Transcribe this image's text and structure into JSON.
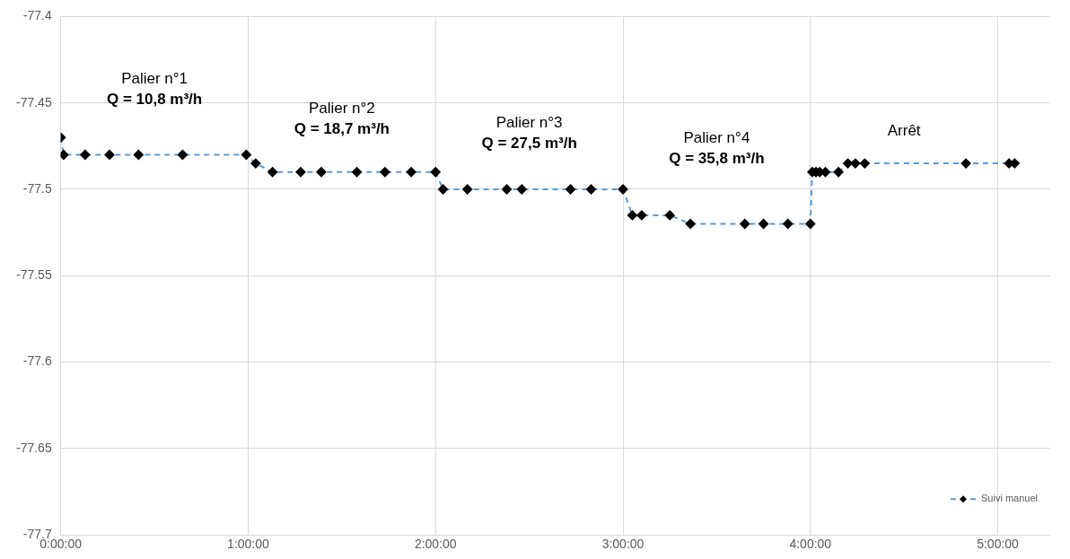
{
  "chart_data": {
    "type": "line",
    "x": [
      0,
      0.015,
      0.13,
      0.26,
      0.415,
      0.65,
      0.99,
      1.04,
      1.13,
      1.28,
      1.39,
      1.58,
      1.73,
      1.87,
      2.0,
      2.04,
      2.17,
      2.38,
      2.46,
      2.72,
      2.83,
      3.0,
      3.05,
      3.1,
      3.25,
      3.36,
      3.65,
      3.75,
      3.88,
      4.0,
      4.01,
      4.03,
      4.05,
      4.08,
      4.15,
      4.2,
      4.24,
      4.29,
      4.83,
      5.06,
      5.09
    ],
    "series": [
      {
        "name": "Suivi manuel",
        "color": "#5b9bd5",
        "values": [
          -77.47,
          -77.48,
          -77.48,
          -77.48,
          -77.48,
          -77.48,
          -77.48,
          -77.485,
          -77.49,
          -77.49,
          -77.49,
          -77.49,
          -77.49,
          -77.49,
          -77.49,
          -77.5,
          -77.5,
          -77.5,
          -77.5,
          -77.5,
          -77.5,
          -77.5,
          -77.515,
          -77.515,
          -77.515,
          -77.52,
          -77.52,
          -77.52,
          -77.52,
          -77.52,
          -77.49,
          -77.49,
          -77.49,
          -77.49,
          -77.49,
          -77.485,
          -77.485,
          -77.485,
          -77.485,
          -77.485,
          -77.485
        ]
      }
    ],
    "xlim": [
      0,
      5.28
    ],
    "xticks": [
      {
        "value": 0,
        "label": "0:00:00"
      },
      {
        "value": 1,
        "label": "1:00:00"
      },
      {
        "value": 2,
        "label": "2:00:00"
      },
      {
        "value": 3,
        "label": "3:00:00"
      },
      {
        "value": 4,
        "label": "4:00:00"
      },
      {
        "value": 5,
        "label": "5:00:00"
      }
    ],
    "ylim": [
      -77.7,
      -77.4
    ],
    "yticks": [
      -77.7,
      -77.65,
      -77.6,
      -77.55,
      -77.5,
      -77.45,
      -77.4
    ],
    "grid": true,
    "legend": "bottom right",
    "marker": "diamond",
    "line_style": "dashed",
    "annotations": [
      "Palier n°1\nQ = 10,8 m³/h",
      "Palier n°2\nQ = 18,7 m³/h",
      "Palier n°3\nQ = 27,5 m³/h",
      "Palier n°4\nQ = 35,8 m³/h",
      "Arrêt"
    ]
  }
}
